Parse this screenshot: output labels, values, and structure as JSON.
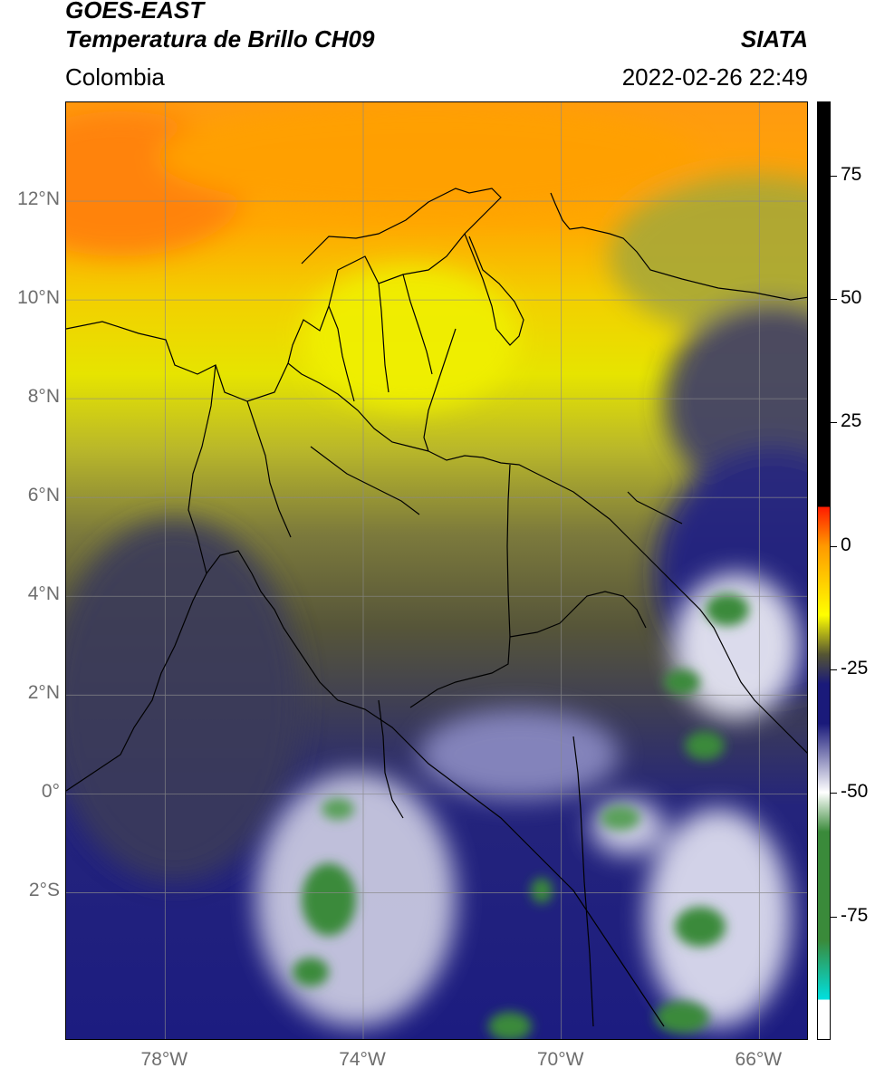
{
  "header": {
    "satellite": "GOES-EAST",
    "product": "Temperatura de Brillo CH09",
    "organization": "SIATA",
    "region": "Colombia",
    "timestamp": "2022-02-26 22:49"
  },
  "map": {
    "extent": {
      "lon_min": -80,
      "lon_max": -65,
      "lat_min": -5,
      "lat_max": 14
    },
    "lat_ticks": [
      {
        "lat": 12,
        "label": "12°N"
      },
      {
        "lat": 10,
        "label": "10°N"
      },
      {
        "lat": 8,
        "label": "8°N"
      },
      {
        "lat": 6,
        "label": "6°N"
      },
      {
        "lat": 4,
        "label": "4°N"
      },
      {
        "lat": 2,
        "label": "2°N"
      },
      {
        "lat": 0,
        "label": "0°"
      },
      {
        "lat": -2,
        "label": "2°S"
      }
    ],
    "lon_ticks": [
      {
        "lon": -78,
        "label": "78°W"
      },
      {
        "lon": -74,
        "label": "74°W"
      },
      {
        "lon": -70,
        "label": "70°W"
      },
      {
        "lon": -66,
        "label": "66°W"
      }
    ]
  },
  "colorbar": {
    "range": [
      -100,
      90
    ],
    "ticks": [
      {
        "value": 75,
        "label": "75"
      },
      {
        "value": 50,
        "label": "50"
      },
      {
        "value": 25,
        "label": "25"
      },
      {
        "value": 0,
        "label": "0"
      },
      {
        "value": -25,
        "label": "-25"
      },
      {
        "value": -50,
        "label": "-50"
      },
      {
        "value": -75,
        "label": "-75"
      }
    ],
    "colors": {
      "black": "#000000",
      "red": "#ff1a00",
      "orange": "#ff9900",
      "yellow": "#ffff00",
      "olive": "#555533",
      "navy": "#1a1a7a",
      "white": "#ffffff",
      "green": "#3a8a3a",
      "cyan": "#00e0e0"
    }
  }
}
